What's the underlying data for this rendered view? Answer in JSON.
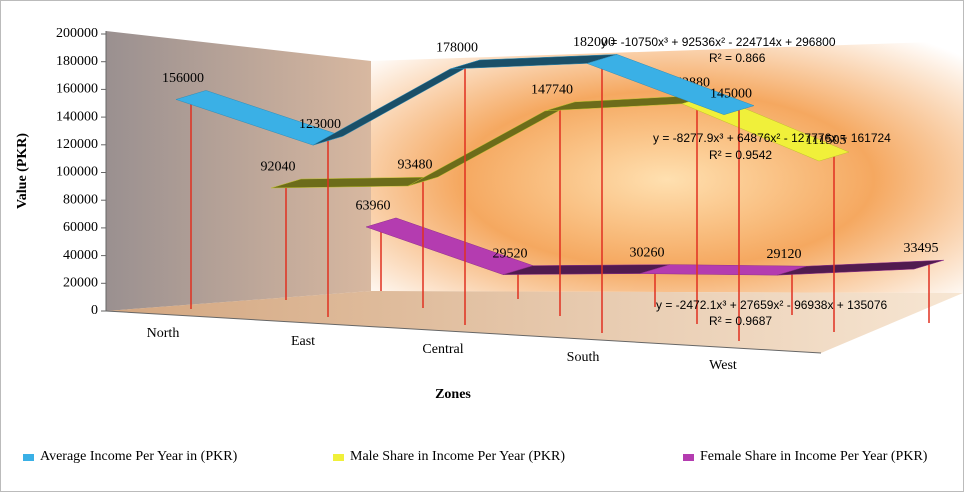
{
  "chart_data": {
    "type": "ribbon3d",
    "categories": [
      "North",
      "East",
      "Central",
      "South",
      "West"
    ],
    "series": [
      {
        "name": "Average Income Per Year in (PKR)",
        "color": "#3ab0e6",
        "values": [
          156000,
          123000,
          178000,
          182000,
          145000
        ]
      },
      {
        "name": "Male Share in Income Per Year (PKR)",
        "color": "#f0f03a",
        "values": [
          92040,
          93480,
          147740,
          152880,
          111505
        ]
      },
      {
        "name": "Female Share in Income Per Year (PKR)",
        "color": "#b43cb0",
        "values": [
          63960,
          29520,
          30260,
          29120,
          33495
        ]
      }
    ],
    "ylim": [
      0,
      200000
    ],
    "yticks": [
      0,
      20000,
      40000,
      60000,
      80000,
      100000,
      120000,
      140000,
      160000,
      180000,
      200000
    ],
    "y_label": "Value (PKR)",
    "x_label": "Zones",
    "annotations": [
      "y = -10750x³ + 92536x² - 224714x + 296800",
      "R² = 0.866",
      "y = -8277.9x³ + 64876x² - 127776x + 161724",
      "R² = 0.9542",
      "y = -2472.1x³ + 27659x² - 96938x + 135076",
      "R² = 0.9687"
    ]
  }
}
